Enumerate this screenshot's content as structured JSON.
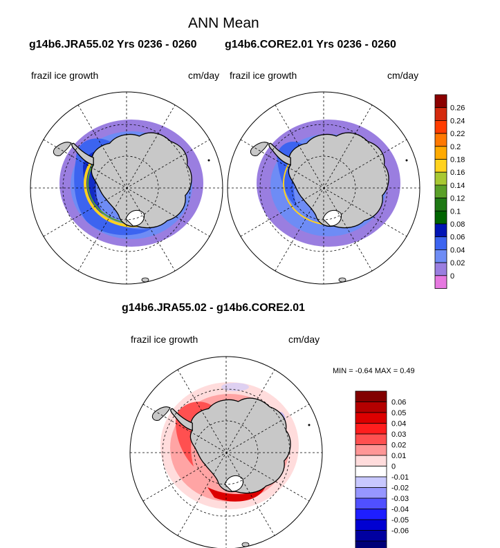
{
  "title": "ANN Mean",
  "case1_label": "g14b6.JRA55.02  Yrs 0236 - 0260",
  "case2_label": "g14b6.CORE2.01  Yrs 0236 - 0260",
  "diff_title": "g14b6.JRA55.02 - g14b6.CORE2.01",
  "variable": "frazil ice growth",
  "units": "cm/day",
  "min_max": "MIN =  -0.64 MAX =   0.49",
  "chart_data": [
    {
      "type": "heatmap",
      "projection": "south-polar-stereographic",
      "panel": "g14b6.JRA55.02",
      "variable": "frazil ice growth",
      "units": "cm/day",
      "colorbar": {
        "labels": [
          "0.26",
          "0.24",
          "0.22",
          "0.2",
          "0.18",
          "0.16",
          "0.14",
          "0.12",
          "0.1",
          "0.08",
          "0.06",
          "0.04",
          "0.02",
          "0"
        ],
        "colors": [
          "#8b0000",
          "#d42a0e",
          "#ff3c00",
          "#ff7800",
          "#ffaa00",
          "#ffd21e",
          "#a8c832",
          "#5aa028",
          "#1e7814",
          "#006400",
          "#0014b4",
          "#3c64f0",
          "#6e8cf5",
          "#9a7ee0",
          "#e678e0"
        ]
      }
    },
    {
      "type": "heatmap",
      "projection": "south-polar-stereographic",
      "panel": "g14b6.CORE2.01",
      "variable": "frazil ice growth",
      "units": "cm/day"
    },
    {
      "type": "heatmap",
      "projection": "south-polar-stereographic",
      "panel": "difference",
      "min": -0.64,
      "max": 0.49,
      "colorbar": {
        "labels": [
          "0.06",
          "0.05",
          "0.04",
          "0.03",
          "0.02",
          "0.01",
          "0",
          "-0.01",
          "-0.02",
          "-0.03",
          "-0.04",
          "-0.05",
          "-0.06"
        ],
        "colors": [
          "#820000",
          "#b40000",
          "#dc0000",
          "#ff1e1e",
          "#ff5050",
          "#ff9696",
          "#ffdcdc",
          "#ffffff",
          "#c8c8ff",
          "#9696ff",
          "#5050ff",
          "#1e1eff",
          "#0000d2",
          "#0000a0",
          "#000078"
        ]
      }
    }
  ]
}
